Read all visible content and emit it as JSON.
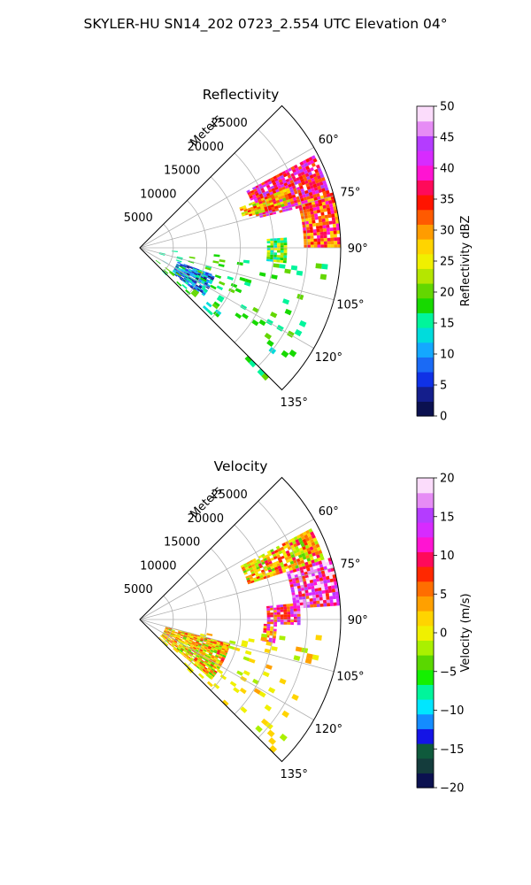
{
  "figure": {
    "title": "SKYLER-HU  SN14_202  0723_2.554 UTC Elevation 04°"
  },
  "chart_data": [
    {
      "type": "polar_sector_image",
      "title": "Reflectivity",
      "range_label": "Meters",
      "angle_ticks": [
        "60°",
        "75°",
        "90°",
        "105°",
        "120°",
        "135°"
      ],
      "angle_tick_values": [
        60,
        75,
        90,
        105,
        120,
        135
      ],
      "angle_range_deg": [
        45,
        135
      ],
      "range_ticks": [
        "5000",
        "10000",
        "15000",
        "20000",
        "25000"
      ],
      "range_tick_values": [
        5000,
        10000,
        15000,
        20000,
        25000
      ],
      "range_max": 30000,
      "grid": true,
      "colorbar": {
        "label": "Reflectivity dBZ",
        "ticks": [
          "0",
          "5",
          "10",
          "15",
          "20",
          "25",
          "30",
          "35",
          "40",
          "45",
          "50"
        ],
        "range": [
          0,
          50
        ]
      },
      "colors": [
        "#0b1150",
        "#141e8c",
        "#0f31e6",
        "#1a6af5",
        "#14a8ff",
        "#00dcdc",
        "#00f59b",
        "#17d900",
        "#63d700",
        "#b5e600",
        "#f0f000",
        "#ffd400",
        "#ff9c00",
        "#ff5a00",
        "#ff1400",
        "#ff0a5a",
        "#ff14d2",
        "#d72bff",
        "#b43cff",
        "#e68cf5",
        "#fbdcfb"
      ],
      "echoes": [
        {
          "az": [
            62,
            76
          ],
          "r": [
            18000,
            29500
          ],
          "value": 38
        },
        {
          "az": [
            74,
            90
          ],
          "r": [
            24500,
            30000
          ],
          "value": 33
        },
        {
          "az": [
            68,
            74
          ],
          "r": [
            16000,
            24000
          ],
          "value": 28
        },
        {
          "az": [
            86,
            96
          ],
          "r": [
            19000,
            22000
          ],
          "value": 20
        },
        {
          "az": [
            110,
            128
          ],
          "r": [
            6000,
            12000
          ],
          "value": 9
        },
        {
          "az": [
            95,
            135
          ],
          "r": [
            3000,
            28000
          ],
          "value": 17
        }
      ]
    },
    {
      "type": "polar_sector_image",
      "title": "Velocity",
      "range_label": "Meters",
      "angle_ticks": [
        "60°",
        "75°",
        "90°",
        "105°",
        "120°",
        "135°"
      ],
      "angle_tick_values": [
        60,
        75,
        90,
        105,
        120,
        135
      ],
      "angle_range_deg": [
        45,
        135
      ],
      "range_ticks": [
        "5000",
        "10000",
        "15000",
        "20000",
        "25000"
      ],
      "range_tick_values": [
        5000,
        10000,
        15000,
        20000,
        25000
      ],
      "range_max": 30000,
      "grid": true,
      "colorbar": {
        "label": "Velocity (m/s)",
        "ticks": [
          "−20",
          "−15",
          "−10",
          "−5",
          "0",
          "5",
          "10",
          "15",
          "20"
        ],
        "range": [
          -20,
          20
        ]
      },
      "colors": [
        "#0b1150",
        "#143c3c",
        "#0f5a3c",
        "#1414e6",
        "#148cff",
        "#00e6ff",
        "#00f59b",
        "#14f000",
        "#5ad700",
        "#aaf000",
        "#f0f000",
        "#ffd400",
        "#ffa000",
        "#ff6e00",
        "#ff2800",
        "#ff0a5a",
        "#ff14d2",
        "#d72bff",
        "#b43cff",
        "#e68cf5",
        "#fbdcfb"
      ],
      "echoes": [
        {
          "az": [
            62,
            72
          ],
          "r": [
            17000,
            29000
          ],
          "value": 3
        },
        {
          "az": [
            72,
            86
          ],
          "r": [
            23000,
            30000
          ],
          "value": 13
        },
        {
          "az": [
            84,
            92
          ],
          "r": [
            19000,
            24000
          ],
          "value": 10
        },
        {
          "az": [
            92,
            100
          ],
          "r": [
            18500,
            20500
          ],
          "value": 8
        },
        {
          "az": [
            105,
            130
          ],
          "r": [
            4000,
            14000
          ],
          "value": 2
        },
        {
          "az": [
            95,
            135
          ],
          "r": [
            3000,
            28000
          ],
          "value": 1
        }
      ]
    }
  ]
}
